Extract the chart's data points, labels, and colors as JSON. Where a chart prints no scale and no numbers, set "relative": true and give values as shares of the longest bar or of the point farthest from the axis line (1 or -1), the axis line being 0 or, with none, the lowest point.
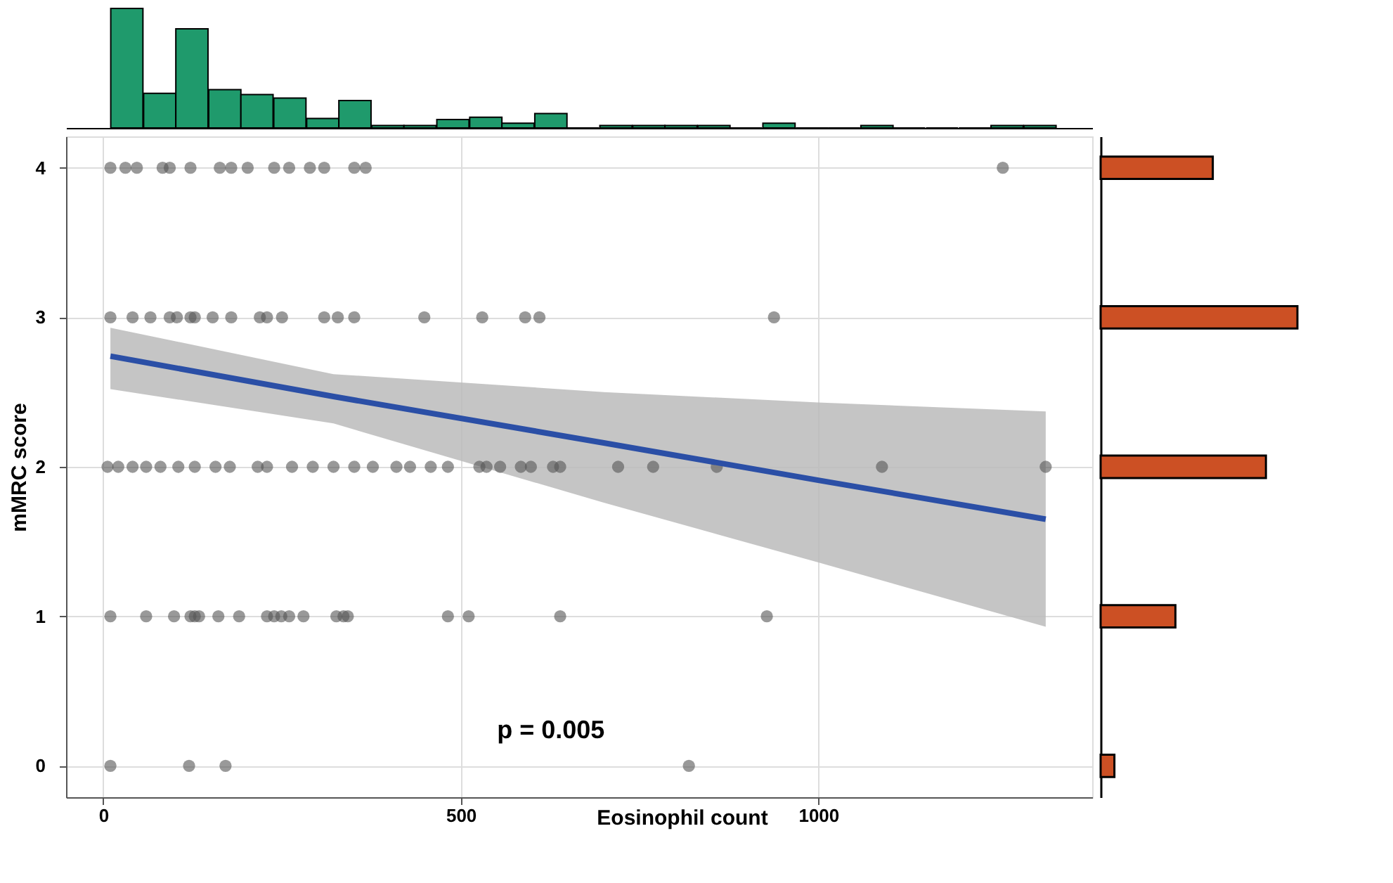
{
  "chart_data": [
    {
      "type": "bar",
      "relative": true,
      "color": "#1f9a6c",
      "xlim": [
        -52,
        1383
      ],
      "tick_labels": false,
      "x": [
        33,
        79,
        124,
        170,
        215,
        261,
        307,
        352,
        398,
        443,
        489,
        535,
        580,
        626,
        671,
        717,
        763,
        808,
        854,
        899,
        945,
        991,
        1036,
        1082,
        1127,
        1173,
        1219,
        1264,
        1310
      ],
      "values": [
        1.0,
        0.29,
        0.83,
        0.32,
        0.28,
        0.25,
        0.08,
        0.23,
        0.02,
        0.02,
        0.07,
        0.09,
        0.04,
        0.12,
        0,
        0.02,
        0.02,
        0.02,
        0.02,
        0,
        0.04,
        0,
        0,
        0.02,
        0,
        0,
        0,
        0.02,
        0.02
      ]
    },
    {
      "type": "scatter",
      "xlabel": "Eosinophil count",
      "ylabel": "mMRC score",
      "xlim": [
        -52,
        1383
      ],
      "ylim": [
        -0.21,
        4.21
      ],
      "xticks": [
        0,
        500,
        1000
      ],
      "yticks": [
        0,
        1,
        2,
        3,
        4
      ],
      "grid": true,
      "annotations": [
        "p = 0.005"
      ],
      "series": [
        {
          "type": "scatter",
          "marker": "circle",
          "color": "#555555",
          "x": [
            10,
            31,
            47,
            83,
            93,
            122,
            163,
            179,
            202,
            239,
            260,
            289,
            309,
            351,
            367,
            1258,
            10,
            41,
            66,
            93,
            103,
            122,
            128,
            153,
            179,
            219,
            229,
            250,
            309,
            328,
            351,
            449,
            530,
            590,
            610,
            938,
            6,
            21,
            41,
            60,
            80,
            105,
            128,
            157,
            177,
            216,
            229,
            264,
            293,
            322,
            351,
            377,
            410,
            429,
            458,
            482,
            526,
            536,
            555,
            584,
            598,
            629,
            639,
            720,
            769,
            858,
            1089,
            1318,
            10,
            60,
            99,
            122,
            128,
            134,
            161,
            190,
            229,
            239,
            249,
            260,
            280,
            326,
            336,
            342,
            482,
            511,
            639,
            928,
            10,
            120,
            171,
            819
          ],
          "values": [
            4,
            4,
            4,
            4,
            4,
            4,
            4,
            4,
            4,
            4,
            4,
            4,
            4,
            4,
            4,
            4,
            3,
            3,
            3,
            3,
            3,
            3,
            3,
            3,
            3,
            3,
            3,
            3,
            3,
            3,
            3,
            3,
            3,
            3,
            3,
            3,
            2,
            2,
            2,
            2,
            2,
            2,
            2,
            2,
            2,
            2,
            2,
            2,
            2,
            2,
            2,
            2,
            2,
            2,
            2,
            2,
            2,
            2,
            2,
            2,
            2,
            2,
            2,
            2,
            2,
            2,
            2,
            2,
            1,
            1,
            1,
            1,
            1,
            1,
            1,
            1,
            1,
            1,
            1,
            1,
            1,
            1,
            1,
            1,
            1,
            1,
            1,
            1,
            0,
            0,
            0,
            0
          ]
        },
        {
          "type": "line",
          "color": "#2b4fa6",
          "x": [
            10,
            322,
            700,
            1000,
            1318
          ],
          "values": [
            2.74,
            2.47,
            2.16,
            1.91,
            1.65
          ],
          "lower": [
            2.52,
            2.29,
            1.76,
            1.36,
            0.93
          ],
          "upper": [
            2.93,
            2.62,
            2.5,
            2.43,
            2.37
          ]
        }
      ]
    },
    {
      "type": "bar",
      "orientation": "horizontal",
      "relative": true,
      "color": "#cc5024",
      "tick_labels": false,
      "categories": [
        null,
        null,
        null,
        null,
        null
      ],
      "values": [
        0.57,
        1.0,
        0.84,
        0.38,
        0.07
      ]
    }
  ]
}
